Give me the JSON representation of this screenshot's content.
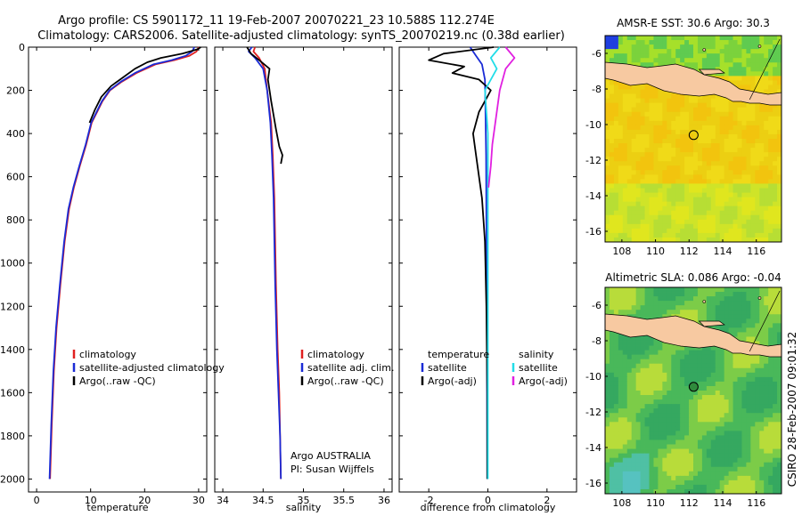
{
  "title_line1": "Argo profile: CS 5901172_11 19-Feb-2007 20070221_23 10.588S 112.274E",
  "title_line2": "Climatology: CARS2006. Satellite-adjusted climatology: synTS_20070219.nc (0.38d earlier)",
  "side_label": "CSIRO 28-Feb-2007 09:01:32",
  "colors": {
    "climatology": "#e02020",
    "satellite": "#1a2bd6",
    "argo": "#000000",
    "cyan": "#22dde8",
    "magenta": "#e020e0",
    "land": "#f7c9a1"
  },
  "chart_data": [
    {
      "type": "line",
      "xlabel": "temperature",
      "ylabel": "",
      "xlim": [
        -1.5,
        31.5
      ],
      "ylim": [
        2060,
        0
      ],
      "xticks": [
        "0",
        "10",
        "20",
        "30"
      ],
      "yticks": [
        "0",
        "200",
        "400",
        "600",
        "800",
        "1000",
        "1200",
        "1400",
        "1600",
        "1800",
        "2000"
      ],
      "legend": [
        "climatology",
        "satellite-adjusted climatology",
        "Argo(..raw -QC)"
      ],
      "series": [
        {
          "name": "climatology",
          "color": "#e02020",
          "x": [
            30.0,
            29.6,
            28.3,
            25.5,
            22.0,
            18.5,
            15.8,
            13.6,
            12.2,
            11.2,
            10.2,
            9.2,
            8.0,
            6.9,
            6.0,
            5.2,
            4.4,
            3.7,
            3.2,
            2.8,
            2.5
          ],
          "y": [
            0,
            20,
            40,
            60,
            80,
            120,
            160,
            200,
            250,
            300,
            350,
            450,
            550,
            650,
            750,
            900,
            1100,
            1300,
            1500,
            1750,
            2000
          ]
        },
        {
          "name": "satellite-adjusted climatology",
          "color": "#1a2bd6",
          "x": [
            29.2,
            28.8,
            27.6,
            25.0,
            21.6,
            18.2,
            15.6,
            13.5,
            12.1,
            11.1,
            10.1,
            9.1,
            7.9,
            6.8,
            5.9,
            5.1,
            4.3,
            3.6,
            3.1,
            2.7,
            2.4
          ],
          "y": [
            0,
            20,
            40,
            60,
            80,
            120,
            160,
            200,
            250,
            300,
            350,
            450,
            550,
            650,
            750,
            900,
            1100,
            1300,
            1500,
            1750,
            2000
          ]
        },
        {
          "name": "Argo(..raw -QC)",
          "color": "#000000",
          "x": [
            30.4,
            29.8,
            27.0,
            23.0,
            20.5,
            18.2,
            16.0,
            13.8,
            12.0,
            10.8,
            9.8
          ],
          "y": [
            0,
            10,
            30,
            50,
            70,
            100,
            140,
            180,
            230,
            290,
            350
          ]
        }
      ]
    },
    {
      "type": "line",
      "xlabel": "salinity",
      "ylabel": "",
      "xlim": [
        33.9,
        36.1
      ],
      "ylim": [
        2060,
        0
      ],
      "xticks": [
        "34",
        "34.5",
        "35",
        "35.5",
        "36"
      ],
      "yticks": [],
      "legend": [
        "climatology",
        "satellite adj. clim.",
        "Argo(..raw -QC)"
      ],
      "annotation": [
        "Argo AUSTRALIA",
        "PI: Susan Wijffels"
      ],
      "series": [
        {
          "name": "climatology",
          "color": "#e02020",
          "x": [
            34.4,
            34.38,
            34.45,
            34.52,
            34.55,
            34.6,
            34.62,
            34.64,
            34.65,
            34.66,
            34.68,
            34.7,
            34.71,
            34.72
          ],
          "y": [
            0,
            20,
            50,
            100,
            200,
            350,
            500,
            700,
            900,
            1100,
            1400,
            1600,
            1800,
            2000
          ]
        },
        {
          "name": "satellite adj. clim.",
          "color": "#1a2bd6",
          "x": [
            34.36,
            34.32,
            34.4,
            34.5,
            34.55,
            34.59,
            34.61,
            34.63,
            34.64,
            34.65,
            34.67,
            34.69,
            34.71,
            34.72
          ],
          "y": [
            0,
            20,
            50,
            100,
            200,
            350,
            500,
            700,
            900,
            1100,
            1400,
            1600,
            1800,
            2000
          ]
        },
        {
          "name": "Argo(..raw -QC)",
          "color": "#000000",
          "x": [
            34.3,
            34.35,
            34.45,
            34.58,
            34.56,
            34.6,
            34.66,
            34.7,
            34.74,
            34.72
          ],
          "y": [
            0,
            30,
            60,
            100,
            150,
            250,
            380,
            460,
            500,
            540
          ]
        }
      ]
    },
    {
      "type": "line",
      "xlabel": "difference from climatology",
      "ylabel": "",
      "xlim": [
        -3.0,
        3.0
      ],
      "ylim": [
        2060,
        0
      ],
      "xticks": [
        "-2",
        "0",
        "2"
      ],
      "yticks": [],
      "legend_left": [
        "temperature",
        "satellite",
        "Argo(-adj)"
      ],
      "legend_right": [
        "salinity",
        "satellite",
        "Argo(-adj)"
      ],
      "series": [
        {
          "name": "temperature satellite",
          "color": "#1a2bd6",
          "x": [
            -0.6,
            -0.4,
            -0.2,
            -0.1,
            -0.08,
            -0.06,
            -0.05,
            -0.04,
            -0.03,
            -0.02
          ],
          "y": [
            0,
            40,
            80,
            150,
            300,
            500,
            800,
            1100,
            1500,
            2000
          ]
        },
        {
          "name": "temperature Argo(-adj)",
          "color": "#000000",
          "x": [
            0.2,
            -1.5,
            -2.0,
            -0.8,
            -1.2,
            -0.3,
            0.1,
            -0.1,
            -0.3,
            -0.5,
            -0.4,
            -0.2,
            -0.1,
            -0.05,
            -0.02,
            -0.02
          ],
          "y": [
            0,
            30,
            60,
            90,
            120,
            150,
            200,
            250,
            300,
            400,
            500,
            700,
            900,
            1200,
            1600,
            2000
          ]
        },
        {
          "name": "salinity satellite",
          "color": "#22dde8",
          "x": [
            0.4,
            0.1,
            0.3,
            -0.1,
            0.0,
            0.0,
            0.0
          ],
          "y": [
            0,
            50,
            100,
            200,
            400,
            800,
            2000
          ]
        },
        {
          "name": "salinity Argo(-adj)",
          "color": "#e020e0",
          "x": [
            0.6,
            0.9,
            0.6,
            0.5,
            0.4,
            0.3,
            0.15,
            0.1,
            0.02
          ],
          "y": [
            0,
            50,
            100,
            150,
            200,
            300,
            450,
            550,
            650
          ]
        }
      ]
    },
    {
      "type": "heatmap",
      "title": "AMSR-E SST: 30.6 Argo: 30.3",
      "xticks": [
        "108",
        "110",
        "112",
        "114",
        "116"
      ],
      "yticks": [
        "-6",
        "-8",
        "-10",
        "-12",
        "-14",
        "-16"
      ],
      "xlim": [
        107,
        117.5
      ],
      "ylim": [
        -16.6,
        -5.0
      ],
      "marker": [
        112.27,
        -10.59
      ]
    },
    {
      "type": "heatmap",
      "title": "Altimetric SLA: 0.086 Argo: -0.04",
      "xticks": [
        "108",
        "110",
        "112",
        "114",
        "116"
      ],
      "yticks": [
        "-6",
        "-8",
        "-10",
        "-12",
        "-14",
        "-16"
      ],
      "xlim": [
        107,
        117.5
      ],
      "ylim": [
        -16.6,
        -5.0
      ],
      "marker": [
        112.27,
        -10.59
      ]
    }
  ]
}
